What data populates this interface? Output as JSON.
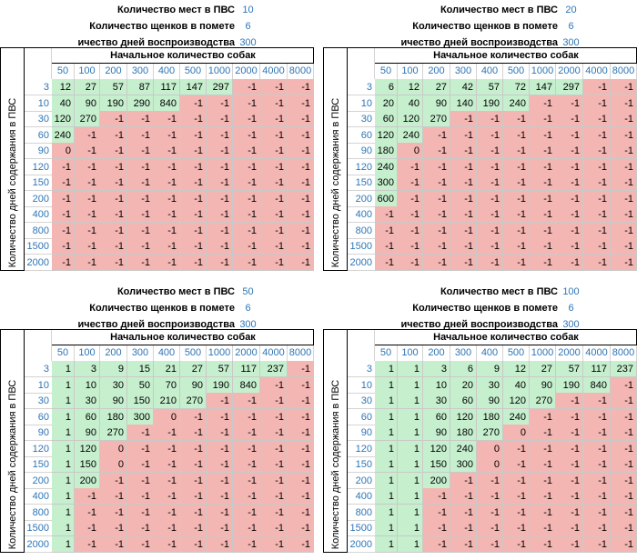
{
  "labels": {
    "places": "Количество мест в ПВС",
    "puppies": "Количество щенков  в помете",
    "days_cut": "ичество дней воспроизводства",
    "header": "Начальное количество собак",
    "y_axis": "Количество дней содержания в ПВС"
  },
  "col_headers": [
    "50",
    "100",
    "200",
    "300",
    "400",
    "500",
    "1000",
    "2000",
    "4000",
    "8000"
  ],
  "row_headers": [
    "3",
    "10",
    "30",
    "60",
    "90",
    "120",
    "150",
    "200",
    "400",
    "800",
    "1500",
    "2000"
  ],
  "colors": {
    "positive": "#c6efce",
    "negative": "#f4b6b3",
    "accent": "#2e75b6"
  },
  "quadrants": [
    {
      "places": "10",
      "puppies": "6",
      "days": "300",
      "cells": [
        [
          "12",
          "27",
          "57",
          "87",
          "117",
          "147",
          "297",
          "-1",
          "-1",
          "-1"
        ],
        [
          "40",
          "90",
          "190",
          "290",
          "840",
          "-1",
          "-1",
          "-1",
          "-1",
          "-1"
        ],
        [
          "120",
          "270",
          "-1",
          "-1",
          "-1",
          "-1",
          "-1",
          "-1",
          "-1",
          "-1"
        ],
        [
          "240",
          "-1",
          "-1",
          "-1",
          "-1",
          "-1",
          "-1",
          "-1",
          "-1",
          "-1"
        ],
        [
          "0",
          "-1",
          "-1",
          "-1",
          "-1",
          "-1",
          "-1",
          "-1",
          "-1",
          "-1"
        ],
        [
          "-1",
          "-1",
          "-1",
          "-1",
          "-1",
          "-1",
          "-1",
          "-1",
          "-1",
          "-1"
        ],
        [
          "-1",
          "-1",
          "-1",
          "-1",
          "-1",
          "-1",
          "-1",
          "-1",
          "-1",
          "-1"
        ],
        [
          "-1",
          "-1",
          "-1",
          "-1",
          "-1",
          "-1",
          "-1",
          "-1",
          "-1",
          "-1"
        ],
        [
          "-1",
          "-1",
          "-1",
          "-1",
          "-1",
          "-1",
          "-1",
          "-1",
          "-1",
          "-1"
        ],
        [
          "-1",
          "-1",
          "-1",
          "-1",
          "-1",
          "-1",
          "-1",
          "-1",
          "-1",
          "-1"
        ],
        [
          "-1",
          "-1",
          "-1",
          "-1",
          "-1",
          "-1",
          "-1",
          "-1",
          "-1",
          "-1"
        ],
        [
          "-1",
          "-1",
          "-1",
          "-1",
          "-1",
          "-1",
          "-1",
          "-1",
          "-1",
          "-1"
        ]
      ]
    },
    {
      "places": "20",
      "puppies": "6",
      "days": "300",
      "cells": [
        [
          "6",
          "12",
          "27",
          "42",
          "57",
          "72",
          "147",
          "297",
          "-1",
          "-1"
        ],
        [
          "20",
          "40",
          "90",
          "140",
          "190",
          "240",
          "-1",
          "-1",
          "-1",
          "-1"
        ],
        [
          "60",
          "120",
          "270",
          "-1",
          "-1",
          "-1",
          "-1",
          "-1",
          "-1",
          "-1"
        ],
        [
          "120",
          "240",
          "-1",
          "-1",
          "-1",
          "-1",
          "-1",
          "-1",
          "-1",
          "-1"
        ],
        [
          "180",
          "0",
          "-1",
          "-1",
          "-1",
          "-1",
          "-1",
          "-1",
          "-1",
          "-1"
        ],
        [
          "240",
          "-1",
          "-1",
          "-1",
          "-1",
          "-1",
          "-1",
          "-1",
          "-1",
          "-1"
        ],
        [
          "300",
          "-1",
          "-1",
          "-1",
          "-1",
          "-1",
          "-1",
          "-1",
          "-1",
          "-1"
        ],
        [
          "600",
          "-1",
          "-1",
          "-1",
          "-1",
          "-1",
          "-1",
          "-1",
          "-1",
          "-1"
        ],
        [
          "-1",
          "-1",
          "-1",
          "-1",
          "-1",
          "-1",
          "-1",
          "-1",
          "-1",
          "-1"
        ],
        [
          "-1",
          "-1",
          "-1",
          "-1",
          "-1",
          "-1",
          "-1",
          "-1",
          "-1",
          "-1"
        ],
        [
          "-1",
          "-1",
          "-1",
          "-1",
          "-1",
          "-1",
          "-1",
          "-1",
          "-1",
          "-1"
        ],
        [
          "-1",
          "-1",
          "-1",
          "-1",
          "-1",
          "-1",
          "-1",
          "-1",
          "-1",
          "-1"
        ]
      ]
    },
    {
      "places": "50",
      "puppies": "6",
      "days": "300",
      "cells": [
        [
          "1",
          "3",
          "9",
          "15",
          "21",
          "27",
          "57",
          "117",
          "237",
          "-1"
        ],
        [
          "1",
          "10",
          "30",
          "50",
          "70",
          "90",
          "190",
          "840",
          "-1",
          "-1"
        ],
        [
          "1",
          "30",
          "90",
          "150",
          "210",
          "270",
          "-1",
          "-1",
          "-1",
          "-1"
        ],
        [
          "1",
          "60",
          "180",
          "300",
          "0",
          "-1",
          "-1",
          "-1",
          "-1",
          "-1"
        ],
        [
          "1",
          "90",
          "270",
          "-1",
          "-1",
          "-1",
          "-1",
          "-1",
          "-1",
          "-1"
        ],
        [
          "1",
          "120",
          "0",
          "-1",
          "-1",
          "-1",
          "-1",
          "-1",
          "-1",
          "-1"
        ],
        [
          "1",
          "150",
          "0",
          "-1",
          "-1",
          "-1",
          "-1",
          "-1",
          "-1",
          "-1"
        ],
        [
          "1",
          "200",
          "-1",
          "-1",
          "-1",
          "-1",
          "-1",
          "-1",
          "-1",
          "-1"
        ],
        [
          "1",
          "-1",
          "-1",
          "-1",
          "-1",
          "-1",
          "-1",
          "-1",
          "-1",
          "-1"
        ],
        [
          "1",
          "-1",
          "-1",
          "-1",
          "-1",
          "-1",
          "-1",
          "-1",
          "-1",
          "-1"
        ],
        [
          "1",
          "-1",
          "-1",
          "-1",
          "-1",
          "-1",
          "-1",
          "-1",
          "-1",
          "-1"
        ],
        [
          "1",
          "-1",
          "-1",
          "-1",
          "-1",
          "-1",
          "-1",
          "-1",
          "-1",
          "-1"
        ]
      ]
    },
    {
      "places": "100",
      "puppies": "6",
      "days": "300",
      "cells": [
        [
          "1",
          "1",
          "3",
          "6",
          "9",
          "12",
          "27",
          "57",
          "117",
          "237"
        ],
        [
          "1",
          "1",
          "10",
          "20",
          "30",
          "40",
          "90",
          "190",
          "840",
          "-1"
        ],
        [
          "1",
          "1",
          "30",
          "60",
          "90",
          "120",
          "270",
          "-1",
          "-1",
          "-1"
        ],
        [
          "1",
          "1",
          "60",
          "120",
          "180",
          "240",
          "-1",
          "-1",
          "-1",
          "-1"
        ],
        [
          "1",
          "1",
          "90",
          "180",
          "270",
          "0",
          "-1",
          "-1",
          "-1",
          "-1"
        ],
        [
          "1",
          "1",
          "120",
          "240",
          "0",
          "-1",
          "-1",
          "-1",
          "-1",
          "-1"
        ],
        [
          "1",
          "1",
          "150",
          "300",
          "0",
          "-1",
          "-1",
          "-1",
          "-1",
          "-1"
        ],
        [
          "1",
          "1",
          "200",
          "-1",
          "-1",
          "-1",
          "-1",
          "-1",
          "-1",
          "-1"
        ],
        [
          "1",
          "1",
          "-1",
          "-1",
          "-1",
          "-1",
          "-1",
          "-1",
          "-1",
          "-1"
        ],
        [
          "1",
          "1",
          "-1",
          "-1",
          "-1",
          "-1",
          "-1",
          "-1",
          "-1",
          "-1"
        ],
        [
          "1",
          "1",
          "-1",
          "-1",
          "-1",
          "-1",
          "-1",
          "-1",
          "-1",
          "-1"
        ],
        [
          "1",
          "1",
          "-1",
          "-1",
          "-1",
          "-1",
          "-1",
          "-1",
          "-1",
          "-1"
        ]
      ]
    }
  ]
}
